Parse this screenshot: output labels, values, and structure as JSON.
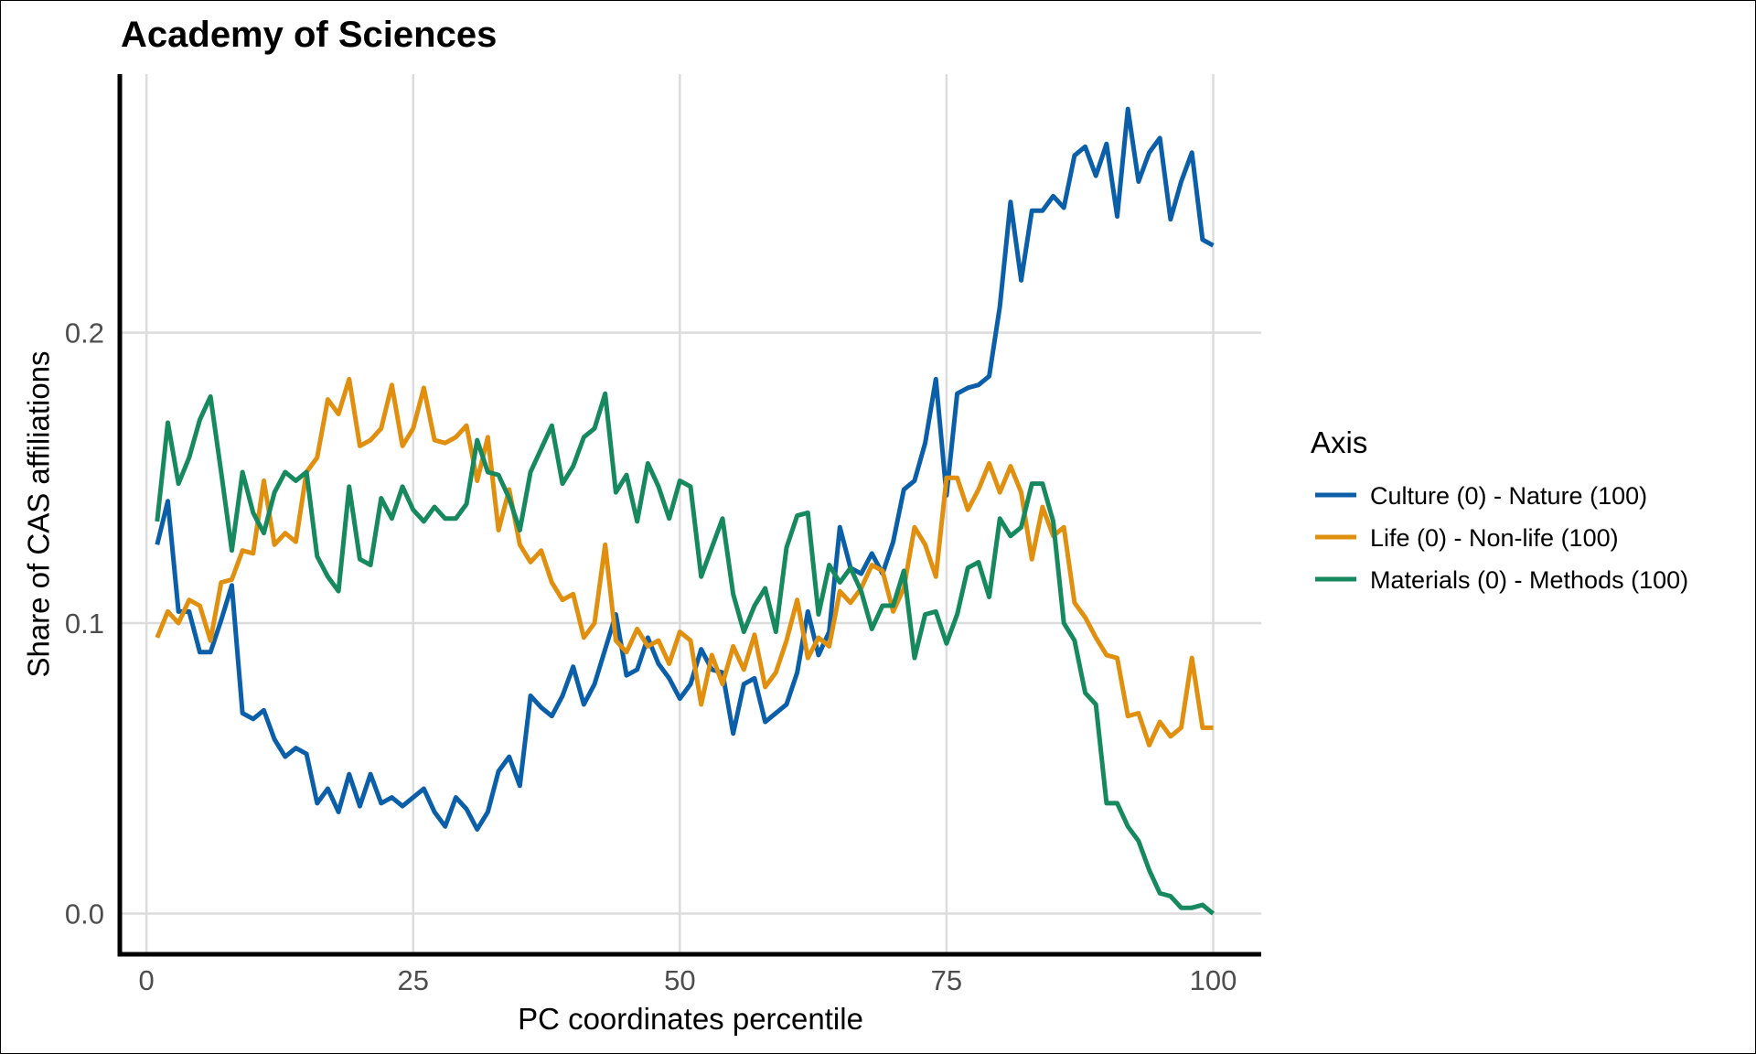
{
  "chart_data": {
    "type": "line",
    "title": "Academy of Sciences",
    "xlabel": "PC coordinates percentile",
    "ylabel": "Share of CAS affiliations",
    "xlim": [
      -2.5,
      104.5
    ],
    "ylim": [
      -0.014,
      0.289
    ],
    "x_ticks": [
      0,
      25,
      50,
      75,
      100
    ],
    "y_ticks": [
      0.0,
      0.1,
      0.2
    ],
    "x_tick_labels": [
      "0",
      "25",
      "50",
      "75",
      "100"
    ],
    "y_tick_labels": [
      "0.0",
      "0.1",
      "0.2"
    ],
    "grid": true,
    "legend_position": "right",
    "legend_title": "Axis",
    "x": [
      1,
      2,
      3,
      4,
      5,
      6,
      7,
      8,
      9,
      10,
      11,
      12,
      13,
      14,
      15,
      16,
      17,
      18,
      19,
      20,
      21,
      22,
      23,
      24,
      25,
      26,
      27,
      28,
      29,
      30,
      31,
      32,
      33,
      34,
      35,
      36,
      37,
      38,
      39,
      40,
      41,
      42,
      43,
      44,
      45,
      46,
      47,
      48,
      49,
      50,
      51,
      52,
      53,
      54,
      55,
      56,
      57,
      58,
      59,
      60,
      61,
      62,
      63,
      64,
      65,
      66,
      67,
      68,
      69,
      70,
      71,
      72,
      73,
      74,
      75,
      76,
      77,
      78,
      79,
      80,
      81,
      82,
      83,
      84,
      85,
      86,
      87,
      88,
      89,
      90,
      91,
      92,
      93,
      94,
      95,
      96,
      97,
      98,
      99,
      100
    ],
    "series": [
      {
        "name": "Culture (0) - Nature (100)",
        "color": "#0a5fa8",
        "values": [
          0.127,
          0.142,
          0.104,
          0.104,
          0.09,
          0.09,
          0.101,
          0.113,
          0.069,
          0.067,
          0.07,
          0.06,
          0.054,
          0.057,
          0.055,
          0.038,
          0.043,
          0.035,
          0.048,
          0.037,
          0.048,
          0.038,
          0.04,
          0.037,
          0.04,
          0.043,
          0.035,
          0.03,
          0.04,
          0.036,
          0.029,
          0.035,
          0.049,
          0.054,
          0.044,
          0.075,
          0.071,
          0.068,
          0.075,
          0.085,
          0.072,
          0.079,
          0.091,
          0.103,
          0.082,
          0.084,
          0.095,
          0.086,
          0.081,
          0.074,
          0.079,
          0.091,
          0.084,
          0.083,
          0.062,
          0.079,
          0.081,
          0.066,
          0.069,
          0.072,
          0.083,
          0.104,
          0.089,
          0.097,
          0.133,
          0.119,
          0.117,
          0.124,
          0.117,
          0.128,
          0.146,
          0.149,
          0.162,
          0.184,
          0.144,
          0.179,
          0.181,
          0.182,
          0.185,
          0.209,
          0.245,
          0.218,
          0.242,
          0.242,
          0.247,
          0.243,
          0.261,
          0.264,
          0.254,
          0.265,
          0.24,
          0.277,
          0.252,
          0.262,
          0.267,
          0.239,
          0.252,
          0.262,
          0.232,
          0.23
        ]
      },
      {
        "name": "Life (0) - Non-life (100)",
        "color": "#e08f0e",
        "values": [
          0.095,
          0.104,
          0.1,
          0.108,
          0.106,
          0.094,
          0.114,
          0.115,
          0.125,
          0.124,
          0.149,
          0.127,
          0.131,
          0.128,
          0.152,
          0.157,
          0.177,
          0.172,
          0.184,
          0.161,
          0.163,
          0.167,
          0.182,
          0.161,
          0.167,
          0.181,
          0.163,
          0.162,
          0.164,
          0.168,
          0.149,
          0.164,
          0.132,
          0.146,
          0.127,
          0.121,
          0.125,
          0.114,
          0.108,
          0.11,
          0.095,
          0.1,
          0.127,
          0.094,
          0.09,
          0.098,
          0.092,
          0.094,
          0.086,
          0.097,
          0.094,
          0.072,
          0.089,
          0.079,
          0.092,
          0.084,
          0.096,
          0.078,
          0.083,
          0.094,
          0.108,
          0.088,
          0.095,
          0.092,
          0.111,
          0.107,
          0.112,
          0.12,
          0.118,
          0.104,
          0.112,
          0.133,
          0.127,
          0.116,
          0.15,
          0.15,
          0.139,
          0.146,
          0.155,
          0.145,
          0.154,
          0.145,
          0.122,
          0.14,
          0.13,
          0.133,
          0.107,
          0.102,
          0.095,
          0.089,
          0.088,
          0.068,
          0.069,
          0.058,
          0.066,
          0.061,
          0.064,
          0.088,
          0.064,
          0.064
        ]
      },
      {
        "name": "Materials (0) - Methods (100)",
        "color": "#16895e",
        "values": [
          0.135,
          0.169,
          0.148,
          0.157,
          0.17,
          0.178,
          0.152,
          0.125,
          0.152,
          0.138,
          0.131,
          0.145,
          0.152,
          0.149,
          0.152,
          0.123,
          0.116,
          0.111,
          0.147,
          0.122,
          0.12,
          0.143,
          0.136,
          0.147,
          0.139,
          0.135,
          0.14,
          0.136,
          0.136,
          0.141,
          0.163,
          0.152,
          0.151,
          0.143,
          0.132,
          0.152,
          0.16,
          0.168,
          0.148,
          0.154,
          0.164,
          0.167,
          0.179,
          0.145,
          0.151,
          0.135,
          0.155,
          0.147,
          0.136,
          0.149,
          0.147,
          0.116,
          0.126,
          0.136,
          0.11,
          0.097,
          0.106,
          0.112,
          0.097,
          0.126,
          0.137,
          0.138,
          0.103,
          0.12,
          0.114,
          0.119,
          0.111,
          0.098,
          0.106,
          0.106,
          0.118,
          0.088,
          0.103,
          0.104,
          0.093,
          0.103,
          0.119,
          0.121,
          0.109,
          0.136,
          0.13,
          0.133,
          0.148,
          0.148,
          0.135,
          0.1,
          0.094,
          0.076,
          0.072,
          0.038,
          0.038,
          0.03,
          0.025,
          0.015,
          0.007,
          0.006,
          0.002,
          0.002,
          0.003,
          0.0
        ]
      }
    ]
  }
}
